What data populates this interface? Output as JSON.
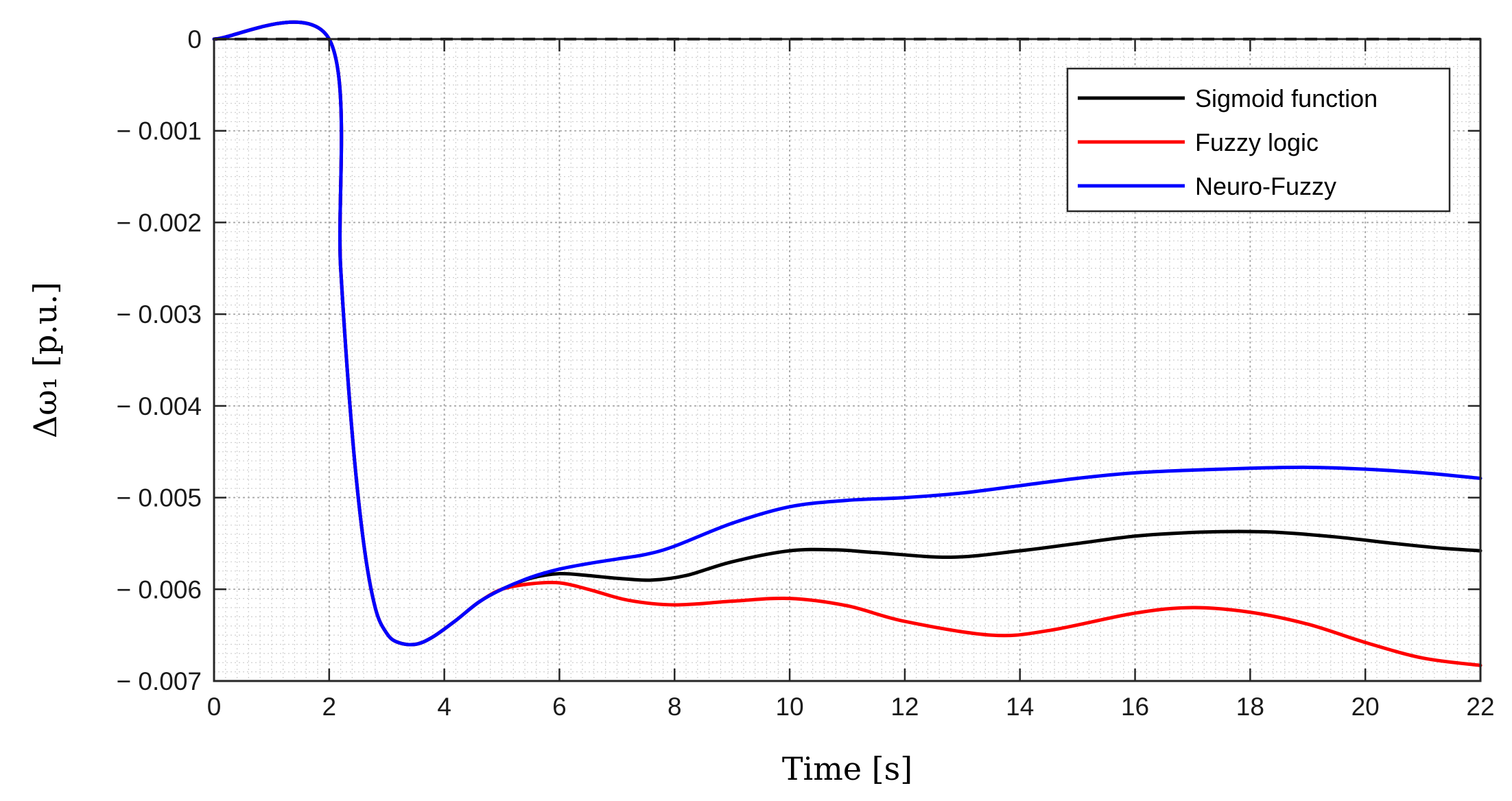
{
  "chart_data": {
    "type": "line",
    "xlabel": "Time [s]",
    "ylabel": "Δω₁ [p.u.]",
    "xlim": [
      0,
      22
    ],
    "ylim": [
      -0.007,
      0
    ],
    "x_ticks": [
      "0",
      "2",
      "4",
      "6",
      "8",
      "10",
      "12",
      "14",
      "16",
      "18",
      "20",
      "22"
    ],
    "y_ticks": [
      "0",
      "− 0.001",
      "− 0.002",
      "− 0.003",
      "− 0.004",
      "− 0.005",
      "− 0.006",
      "− 0.007"
    ],
    "grid": true,
    "minor_grid": true,
    "legend_position": "top-right",
    "series": [
      {
        "name": "Sigmoid function",
        "color": "#000000",
        "x": [
          0,
          2.0,
          2.2,
          2.4,
          2.6,
          2.8,
          3.0,
          3.2,
          3.5,
          3.8,
          4.2,
          4.6,
          5.0,
          5.5,
          6.0,
          6.5,
          7.0,
          7.6,
          8.2,
          9.0,
          10.0,
          10.8,
          11.5,
          12.8,
          14.0,
          15.0,
          16.0,
          17.0,
          17.8,
          18.5,
          19.5,
          20.5,
          21.3,
          22.0
        ],
        "y": [
          0,
          0,
          -0.0025,
          -0.0043,
          -0.0055,
          -0.0062,
          -0.00648,
          -0.00658,
          -0.0066,
          -0.00652,
          -0.00634,
          -0.00614,
          -0.006,
          -0.00588,
          -0.00583,
          -0.00585,
          -0.00588,
          -0.0059,
          -0.00585,
          -0.0057,
          -0.00558,
          -0.00557,
          -0.0056,
          -0.00565,
          -0.00558,
          -0.0055,
          -0.00542,
          -0.00538,
          -0.00537,
          -0.00538,
          -0.00543,
          -0.0055,
          -0.00555,
          -0.00558
        ]
      },
      {
        "name": "Fuzzy logic",
        "color": "#ff0000",
        "x": [
          0,
          2.0,
          2.2,
          2.4,
          2.6,
          2.8,
          3.0,
          3.2,
          3.5,
          3.8,
          4.2,
          4.6,
          5.0,
          5.5,
          6.0,
          6.5,
          7.2,
          8.0,
          9.0,
          10.0,
          11.0,
          12.0,
          13.5,
          14.5,
          16.0,
          17.0,
          18.0,
          19.0,
          20.0,
          21.0,
          22.0
        ],
        "y": [
          0,
          0,
          -0.0025,
          -0.0043,
          -0.0055,
          -0.0062,
          -0.00648,
          -0.00658,
          -0.0066,
          -0.00652,
          -0.00634,
          -0.00614,
          -0.006,
          -0.00594,
          -0.00593,
          -0.006,
          -0.00612,
          -0.00617,
          -0.00613,
          -0.0061,
          -0.00618,
          -0.00635,
          -0.0065,
          -0.00645,
          -0.00626,
          -0.0062,
          -0.00625,
          -0.00638,
          -0.00658,
          -0.00675,
          -0.00683
        ]
      },
      {
        "name": "Neuro-Fuzzy",
        "color": "#0000ff",
        "x": [
          0,
          2.0,
          2.2,
          2.4,
          2.6,
          2.8,
          3.0,
          3.2,
          3.5,
          3.8,
          4.2,
          4.6,
          5.0,
          5.5,
          6.0,
          6.5,
          7.0,
          7.5,
          8.0,
          9.0,
          10.0,
          11.0,
          12.0,
          13.0,
          14.0,
          15.0,
          16.0,
          17.0,
          18.0,
          19.0,
          20.0,
          21.0,
          22.0
        ],
        "y": [
          0,
          0,
          -0.0025,
          -0.0043,
          -0.0055,
          -0.0062,
          -0.00648,
          -0.00658,
          -0.0066,
          -0.00652,
          -0.00634,
          -0.00614,
          -0.006,
          -0.00587,
          -0.00578,
          -0.00572,
          -0.00567,
          -0.00562,
          -0.00553,
          -0.00528,
          -0.0051,
          -0.00503,
          -0.005,
          -0.00495,
          -0.00487,
          -0.00479,
          -0.00473,
          -0.0047,
          -0.00468,
          -0.00467,
          -0.00469,
          -0.00473,
          -0.00479
        ]
      }
    ],
    "reference_line": {
      "y": 0,
      "style": "dashed",
      "color": "#000000"
    }
  }
}
